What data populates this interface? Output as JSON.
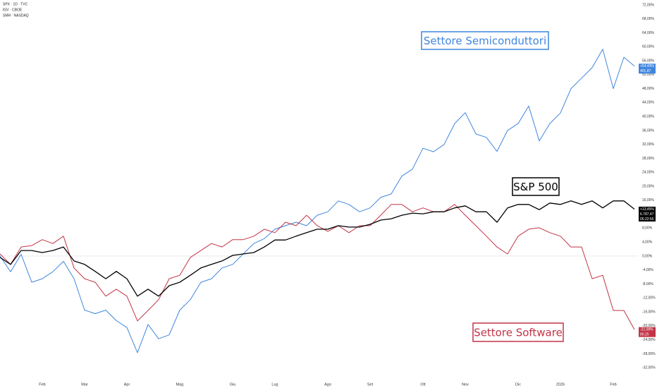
{
  "chart_data": {
    "type": "line",
    "legend": [
      "SPX · 1D · TVC",
      "IGV · CBOE",
      "SMH · NASDAQ"
    ],
    "categories": [
      null,
      null,
      null,
      null,
      "Feb",
      null,
      null,
      null,
      "Mar",
      null,
      null,
      null,
      "Apr",
      null,
      null,
      null,
      null,
      "Mag",
      null,
      null,
      null,
      null,
      "Giu",
      null,
      null,
      null,
      "Lug",
      null,
      null,
      null,
      null,
      "Ago",
      null,
      null,
      null,
      "Set",
      null,
      null,
      null,
      null,
      "Ott",
      null,
      null,
      null,
      "Nov",
      null,
      null,
      null,
      null,
      "Dic",
      null,
      null,
      null,
      "2026",
      null,
      null,
      null,
      null,
      "Feb",
      null,
      null
    ],
    "series": [
      {
        "name": "SPX",
        "color": "#000000",
        "tag": [
          "+13,45%",
          "6.787,47",
          "05:22:55"
        ],
        "values": [
          -0.4,
          -2.4,
          1.6,
          1.6,
          1,
          1.6,
          2.6,
          -1.4,
          -2.4,
          -4.4,
          -6.5,
          -4.4,
          -6.5,
          -11.5,
          -9.5,
          -11.5,
          -8.5,
          -7.5,
          -5.5,
          -3.4,
          -2.4,
          -1.4,
          0.2,
          0.6,
          1,
          2.6,
          4.6,
          4.6,
          5.7,
          6.7,
          7.7,
          7.7,
          8.7,
          8.3,
          8.3,
          9.1,
          10.3,
          10.7,
          11.7,
          12.3,
          12.1,
          12.7,
          12.7,
          13.8,
          14.4,
          12.7,
          12.7,
          9.7,
          13.8,
          14.8,
          14.8,
          13.3,
          15.2,
          14.8,
          15.8,
          14.8,
          15.8,
          13.8,
          15.8,
          15.8,
          13.45
        ]
      },
      {
        "name": "IGV",
        "color": "#c23447",
        "tag": [
          "-21,08%",
          "80,25"
        ],
        "values": [
          0.6,
          -2.4,
          2.6,
          3,
          4.7,
          3.6,
          5.7,
          -3.4,
          -6.5,
          -7.5,
          -11.5,
          -9.5,
          -11.5,
          -18.6,
          -15.6,
          -12.5,
          -6.5,
          -5.5,
          -0.4,
          1.6,
          3.6,
          2.6,
          4.7,
          4.7,
          5.7,
          7.7,
          6.7,
          9.7,
          8.7,
          11.7,
          8.7,
          7.1,
          8.7,
          6.7,
          8.7,
          8.7,
          11.7,
          14.8,
          14.8,
          12.7,
          13.8,
          12.7,
          12.7,
          14.8,
          11.7,
          8.7,
          5.7,
          2.6,
          0.6,
          5.7,
          7.7,
          8.1,
          6.7,
          5.7,
          2.6,
          2.6,
          -6.5,
          -5.5,
          -15.6,
          -15.6,
          -21.08
        ]
      },
      {
        "name": "SMH",
        "color": "#3f86df",
        "tag": [
          "+54,43%",
          "401,87"
        ],
        "values": [
          0,
          -4.5,
          0.5,
          -7.5,
          -6.5,
          -4.5,
          -1.5,
          -6.5,
          -15.5,
          -16.5,
          -15.5,
          -18.5,
          -20.5,
          -27.7,
          -19.6,
          -23.7,
          -22.6,
          -15.5,
          -12.5,
          -7.5,
          -6.5,
          -3.4,
          -2.4,
          0.6,
          3.6,
          5,
          7.7,
          8.7,
          9.7,
          8.7,
          11.7,
          12.7,
          15.8,
          14.8,
          12.7,
          13.8,
          16.8,
          17.8,
          22.9,
          24.9,
          30.9,
          29.9,
          32,
          38,
          41.1,
          35,
          34,
          30,
          36,
          38,
          43,
          33,
          38,
          41,
          48,
          51,
          54,
          59.3,
          48,
          57,
          54.43
        ]
      }
    ],
    "annotations": [
      {
        "text": "Settore Semiconduttori",
        "color": "#3f86df"
      },
      {
        "text": "S&P 500",
        "color": "#000000"
      },
      {
        "text": "Settore Software",
        "color": "#c23447"
      }
    ],
    "ylim": [
      -35.8,
      73.4
    ],
    "yticks": [
      {
        "value": 72,
        "label": "72,00%"
      },
      {
        "value": 68,
        "label": "68,00%"
      },
      {
        "value": 64,
        "label": "64,00%"
      },
      {
        "value": 60,
        "label": "60,00%"
      },
      {
        "value": 56,
        "label": "56,00%"
      },
      {
        "value": 52,
        "label": "52,00%"
      },
      {
        "value": 48,
        "label": "48,00%"
      },
      {
        "value": 44,
        "label": "44,00%"
      },
      {
        "value": 40,
        "label": "40,00%"
      },
      {
        "value": 36,
        "label": "36,00%"
      },
      {
        "value": 32,
        "label": "32,00%"
      },
      {
        "value": 28,
        "label": "28,00%"
      },
      {
        "value": 24,
        "label": "24,00%"
      },
      {
        "value": 20,
        "label": "20,00%"
      },
      {
        "value": 16,
        "label": "16,00%"
      },
      {
        "value": 12,
        "label": "12,00%"
      },
      {
        "value": 8,
        "label": "8,00%"
      },
      {
        "value": 4,
        "label": "4,00%"
      },
      {
        "value": 0,
        "label": "0,00%"
      },
      {
        "value": -4,
        "label": "-4,00%"
      },
      {
        "value": -8,
        "label": "-8,00%"
      },
      {
        "value": -12,
        "label": "-12,00%"
      },
      {
        "value": -16,
        "label": "-16,00%"
      },
      {
        "value": -20,
        "label": "-20,00%"
      },
      {
        "value": -24,
        "label": "-24,00%"
      },
      {
        "value": -28,
        "label": "-28,00%"
      },
      {
        "value": -32,
        "label": "-32,00%"
      }
    ],
    "zero_line": true
  }
}
